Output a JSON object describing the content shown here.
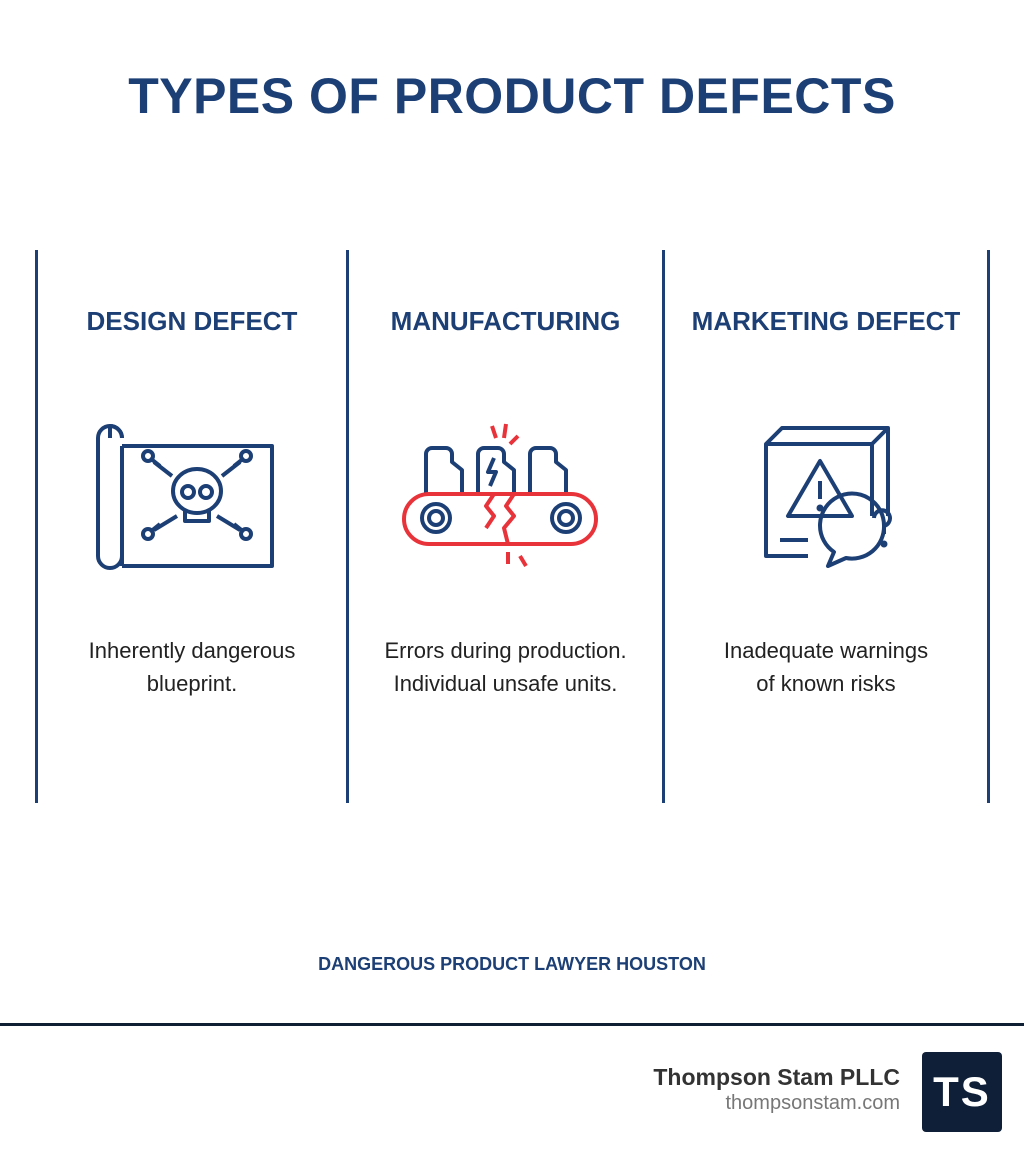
{
  "title": "TYPES OF PRODUCT DEFECTS",
  "columns": [
    {
      "heading": "DESIGN DEFECT",
      "icon": "skull-blueprint-icon",
      "line1": "Inherently dangerous",
      "line2": "blueprint."
    },
    {
      "heading": "MANUFACTURING",
      "icon": "broken-conveyor-icon",
      "line1": "Errors during production.",
      "line2": "Individual unsafe units."
    },
    {
      "heading": "MARKETING DEFECT",
      "icon": "warning-box-question-icon",
      "line1": "Inadequate warnings",
      "line2": "of known risks"
    }
  ],
  "subtitle": "DANGEROUS PRODUCT LAWYER HOUSTON",
  "footer": {
    "firm_name": "Thompson Stam PLLC",
    "url": "thompsonstam.com",
    "logo_text": "TS"
  },
  "colors": {
    "navy": "#1c3f75",
    "red": "#e8333a",
    "logo_bg": "#0f1f38"
  }
}
